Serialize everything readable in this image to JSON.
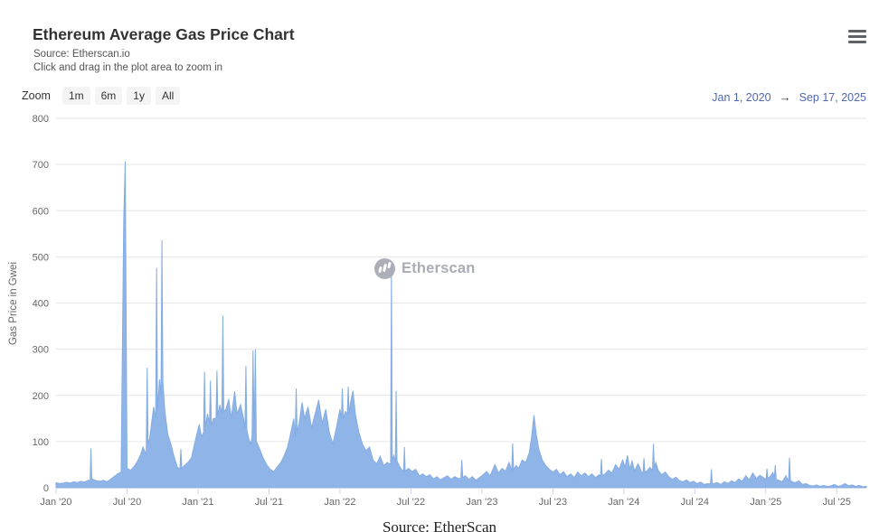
{
  "header": {
    "title": "Ethereum Average Gas Price Chart",
    "subtitle1": "Source: Etherscan.io",
    "subtitle2": "Click and drag in the plot area to zoom in"
  },
  "range_selector": {
    "zoom_label": "Zoom",
    "buttons": [
      "1m",
      "6m",
      "1y",
      "All"
    ],
    "from_date": "Jan 1, 2020",
    "arrow": "→",
    "to_date": "Sep 17, 2025"
  },
  "watermark": {
    "text": "Etherscan"
  },
  "footer": {
    "source_text": "Source: EtherScan"
  },
  "colors": {
    "area_fill": "#8fb5e8",
    "area_line": "#84ace2",
    "grid_line": "#e6e6e6",
    "axis_line": "#ccd6eb",
    "tick_text": "#666666",
    "date_text": "#4f68b0"
  },
  "chart_data": {
    "type": "area",
    "title": "Ethereum Average Gas Price Chart",
    "ylabel": "Gas Price in Gwei",
    "xlabel": "",
    "ylim": [
      0,
      800
    ],
    "yticks": [
      0,
      100,
      200,
      300,
      400,
      500,
      600,
      700,
      800
    ],
    "x_unit": "months since Jan 1 2020",
    "x_range": [
      0,
      68.5
    ],
    "grid": "horizontal-only",
    "legend": "none",
    "xticks": [
      {
        "pos": 0,
        "label": "Jan '20"
      },
      {
        "pos": 6,
        "label": "Jul '20"
      },
      {
        "pos": 12,
        "label": "Jan '21"
      },
      {
        "pos": 18,
        "label": "Jul '21"
      },
      {
        "pos": 24,
        "label": "Jan '22"
      },
      {
        "pos": 30,
        "label": "Jul '22"
      },
      {
        "pos": 36,
        "label": "Jan '23"
      },
      {
        "pos": 42,
        "label": "Jul '23"
      },
      {
        "pos": 48,
        "label": "Jan '24"
      },
      {
        "pos": 54,
        "label": "Jul '24"
      },
      {
        "pos": 60,
        "label": "Jan '25"
      },
      {
        "pos": 66,
        "label": "Jul '25"
      }
    ],
    "points": [
      [
        0.0,
        11
      ],
      [
        0.3,
        9
      ],
      [
        0.6,
        10
      ],
      [
        0.9,
        12
      ],
      [
        1.2,
        10
      ],
      [
        1.5,
        13
      ],
      [
        1.8,
        11
      ],
      [
        2.1,
        14
      ],
      [
        2.4,
        12
      ],
      [
        2.7,
        16
      ],
      [
        2.88,
        16
      ],
      [
        2.95,
        85
      ],
      [
        3.02,
        20
      ],
      [
        3.2,
        17
      ],
      [
        3.45,
        15
      ],
      [
        3.7,
        14
      ],
      [
        4.0,
        16
      ],
      [
        4.3,
        13
      ],
      [
        4.6,
        18
      ],
      [
        4.9,
        24
      ],
      [
        5.2,
        30
      ],
      [
        5.5,
        34
      ],
      [
        5.72,
        580
      ],
      [
        5.85,
        707
      ],
      [
        6.0,
        42
      ],
      [
        6.3,
        38
      ],
      [
        6.6,
        46
      ],
      [
        6.9,
        58
      ],
      [
        7.15,
        72
      ],
      [
        7.35,
        88
      ],
      [
        7.55,
        76
      ],
      [
        7.62,
        70
      ],
      [
        7.7,
        260
      ],
      [
        7.78,
        95
      ],
      [
        7.9,
        105
      ],
      [
        8.05,
        135
      ],
      [
        8.25,
        175
      ],
      [
        8.42,
        150
      ],
      [
        8.5,
        476
      ],
      [
        8.58,
        170
      ],
      [
        8.75,
        235
      ],
      [
        8.87,
        200
      ],
      [
        8.95,
        536
      ],
      [
        9.03,
        230
      ],
      [
        9.2,
        165
      ],
      [
        9.45,
        115
      ],
      [
        9.7,
        95
      ],
      [
        9.95,
        70
      ],
      [
        10.25,
        45
      ],
      [
        10.47,
        40
      ],
      [
        10.55,
        84
      ],
      [
        10.63,
        42
      ],
      [
        10.85,
        48
      ],
      [
        11.15,
        55
      ],
      [
        11.45,
        65
      ],
      [
        11.75,
        100
      ],
      [
        12.1,
        137
      ],
      [
        12.3,
        110
      ],
      [
        12.47,
        120
      ],
      [
        12.55,
        251
      ],
      [
        12.63,
        130
      ],
      [
        12.8,
        160
      ],
      [
        12.97,
        140
      ],
      [
        13.05,
        232
      ],
      [
        13.13,
        135
      ],
      [
        13.3,
        150
      ],
      [
        13.52,
        150
      ],
      [
        13.6,
        254
      ],
      [
        13.68,
        155
      ],
      [
        13.85,
        180
      ],
      [
        14.02,
        160
      ],
      [
        14.1,
        373
      ],
      [
        14.18,
        165
      ],
      [
        14.35,
        170
      ],
      [
        14.6,
        192
      ],
      [
        14.8,
        150
      ],
      [
        15.1,
        209
      ],
      [
        15.3,
        160
      ],
      [
        15.6,
        180
      ],
      [
        15.85,
        150
      ],
      [
        15.97,
        130
      ],
      [
        16.05,
        264
      ],
      [
        16.13,
        125
      ],
      [
        16.3,
        105
      ],
      [
        16.45,
        95
      ],
      [
        16.57,
        110
      ],
      [
        16.65,
        297
      ],
      [
        16.75,
        115
      ],
      [
        16.85,
        300
      ],
      [
        16.93,
        100
      ],
      [
        17.2,
        85
      ],
      [
        17.5,
        65
      ],
      [
        17.8,
        50
      ],
      [
        18.1,
        40
      ],
      [
        18.4,
        35
      ],
      [
        18.7,
        45
      ],
      [
        19.0,
        55
      ],
      [
        19.3,
        70
      ],
      [
        19.6,
        90
      ],
      [
        19.85,
        120
      ],
      [
        20.1,
        150
      ],
      [
        20.22,
        110
      ],
      [
        20.3,
        215
      ],
      [
        20.38,
        120
      ],
      [
        20.55,
        140
      ],
      [
        20.8,
        185
      ],
      [
        21.0,
        150
      ],
      [
        21.3,
        175
      ],
      [
        21.6,
        130
      ],
      [
        21.9,
        160
      ],
      [
        22.2,
        190
      ],
      [
        22.5,
        140
      ],
      [
        22.8,
        170
      ],
      [
        23.1,
        120
      ],
      [
        23.4,
        95
      ],
      [
        23.7,
        130
      ],
      [
        24.0,
        170
      ],
      [
        24.12,
        150
      ],
      [
        24.2,
        215
      ],
      [
        24.28,
        150
      ],
      [
        24.45,
        165
      ],
      [
        24.62,
        160
      ],
      [
        24.7,
        219
      ],
      [
        24.78,
        160
      ],
      [
        24.9,
        185
      ],
      [
        25.1,
        210
      ],
      [
        25.3,
        160
      ],
      [
        25.6,
        120
      ],
      [
        25.9,
        95
      ],
      [
        26.2,
        80
      ],
      [
        26.5,
        88
      ],
      [
        26.8,
        60
      ],
      [
        27.1,
        52
      ],
      [
        27.4,
        68
      ],
      [
        27.7,
        48
      ],
      [
        28.0,
        55
      ],
      [
        28.28,
        50
      ],
      [
        28.35,
        480
      ],
      [
        28.42,
        60
      ],
      [
        28.55,
        70
      ],
      [
        28.68,
        55
      ],
      [
        28.75,
        210
      ],
      [
        28.82,
        58
      ],
      [
        29.0,
        48
      ],
      [
        29.2,
        40
      ],
      [
        29.38,
        35
      ],
      [
        29.45,
        88
      ],
      [
        29.52,
        36
      ],
      [
        29.8,
        42
      ],
      [
        30.1,
        35
      ],
      [
        30.4,
        40
      ],
      [
        30.7,
        26
      ],
      [
        31.0,
        30
      ],
      [
        31.3,
        24
      ],
      [
        31.6,
        28
      ],
      [
        31.9,
        19
      ],
      [
        32.2,
        24
      ],
      [
        32.5,
        17
      ],
      [
        32.8,
        22
      ],
      [
        33.1,
        26
      ],
      [
        33.4,
        18
      ],
      [
        33.7,
        24
      ],
      [
        34.0,
        20
      ],
      [
        34.22,
        20
      ],
      [
        34.3,
        60
      ],
      [
        34.38,
        22
      ],
      [
        34.6,
        26
      ],
      [
        34.9,
        18
      ],
      [
        35.2,
        24
      ],
      [
        35.5,
        16
      ],
      [
        35.8,
        22
      ],
      [
        36.1,
        28
      ],
      [
        36.4,
        35
      ],
      [
        36.7,
        26
      ],
      [
        36.9,
        38
      ],
      [
        37.1,
        50
      ],
      [
        37.4,
        32
      ],
      [
        37.7,
        42
      ],
      [
        38.0,
        36
      ],
      [
        38.3,
        55
      ],
      [
        38.52,
        36
      ],
      [
        38.6,
        96
      ],
      [
        38.68,
        40
      ],
      [
        38.9,
        48
      ],
      [
        39.1,
        42
      ],
      [
        39.4,
        60
      ],
      [
        39.7,
        55
      ],
      [
        40.0,
        75
      ],
      [
        40.2,
        110
      ],
      [
        40.4,
        157
      ],
      [
        40.6,
        115
      ],
      [
        40.8,
        85
      ],
      [
        41.1,
        60
      ],
      [
        41.4,
        48
      ],
      [
        41.7,
        40
      ],
      [
        42.0,
        34
      ],
      [
        42.3,
        40
      ],
      [
        42.6,
        28
      ],
      [
        42.9,
        35
      ],
      [
        43.2,
        24
      ],
      [
        43.5,
        30
      ],
      [
        43.8,
        22
      ],
      [
        44.1,
        34
      ],
      [
        44.4,
        26
      ],
      [
        44.7,
        32
      ],
      [
        45.0,
        24
      ],
      [
        45.3,
        30
      ],
      [
        45.6,
        22
      ],
      [
        45.9,
        28
      ],
      [
        46.02,
        24
      ],
      [
        46.1,
        62
      ],
      [
        46.18,
        26
      ],
      [
        46.4,
        30
      ],
      [
        46.7,
        38
      ],
      [
        47.0,
        32
      ],
      [
        47.3,
        50
      ],
      [
        47.6,
        40
      ],
      [
        47.9,
        60
      ],
      [
        48.1,
        45
      ],
      [
        48.3,
        70
      ],
      [
        48.5,
        40
      ],
      [
        48.7,
        58
      ],
      [
        48.9,
        36
      ],
      [
        49.2,
        52
      ],
      [
        49.5,
        34
      ],
      [
        49.62,
        32
      ],
      [
        49.7,
        64
      ],
      [
        49.78,
        33
      ],
      [
        50.0,
        38
      ],
      [
        50.2,
        44
      ],
      [
        50.42,
        38
      ],
      [
        50.5,
        95
      ],
      [
        50.58,
        42
      ],
      [
        50.7,
        55
      ],
      [
        50.9,
        38
      ],
      [
        51.2,
        28
      ],
      [
        51.5,
        34
      ],
      [
        51.8,
        24
      ],
      [
        52.1,
        18
      ],
      [
        52.4,
        23
      ],
      [
        52.7,
        15
      ],
      [
        53.0,
        13
      ],
      [
        53.3,
        17
      ],
      [
        53.6,
        11
      ],
      [
        53.9,
        14
      ],
      [
        54.2,
        9
      ],
      [
        54.5,
        12
      ],
      [
        54.8,
        7
      ],
      [
        55.1,
        9
      ],
      [
        55.32,
        8
      ],
      [
        55.4,
        40
      ],
      [
        55.48,
        8
      ],
      [
        55.7,
        10
      ],
      [
        55.9,
        11
      ],
      [
        56.2,
        7
      ],
      [
        56.5,
        13
      ],
      [
        56.8,
        9
      ],
      [
        57.1,
        15
      ],
      [
        57.4,
        11
      ],
      [
        57.7,
        19
      ],
      [
        58.0,
        14
      ],
      [
        58.3,
        26
      ],
      [
        58.6,
        17
      ],
      [
        58.9,
        32
      ],
      [
        59.2,
        20
      ],
      [
        59.5,
        27
      ],
      [
        59.8,
        22
      ],
      [
        60.02,
        18
      ],
      [
        60.1,
        41
      ],
      [
        60.18,
        20
      ],
      [
        60.35,
        24
      ],
      [
        60.6,
        33
      ],
      [
        60.72,
        22
      ],
      [
        60.8,
        49
      ],
      [
        60.88,
        18
      ],
      [
        61.1,
        16
      ],
      [
        61.4,
        13
      ],
      [
        61.7,
        26
      ],
      [
        61.92,
        14
      ],
      [
        62.0,
        65
      ],
      [
        62.08,
        16
      ],
      [
        62.3,
        12
      ],
      [
        62.5,
        11
      ],
      [
        62.8,
        15
      ],
      [
        63.1,
        7
      ],
      [
        63.4,
        9
      ],
      [
        63.7,
        5
      ],
      [
        64.0,
        4
      ],
      [
        64.3,
        6
      ],
      [
        64.6,
        3
      ],
      [
        64.9,
        5
      ],
      [
        65.2,
        3
      ],
      [
        65.5,
        4
      ],
      [
        65.8,
        7
      ],
      [
        66.1,
        3
      ],
      [
        66.4,
        5
      ],
      [
        66.7,
        9
      ],
      [
        67.0,
        4
      ],
      [
        67.3,
        6
      ],
      [
        67.6,
        3
      ],
      [
        67.9,
        5
      ],
      [
        68.2,
        2
      ],
      [
        68.5,
        3
      ]
    ]
  }
}
